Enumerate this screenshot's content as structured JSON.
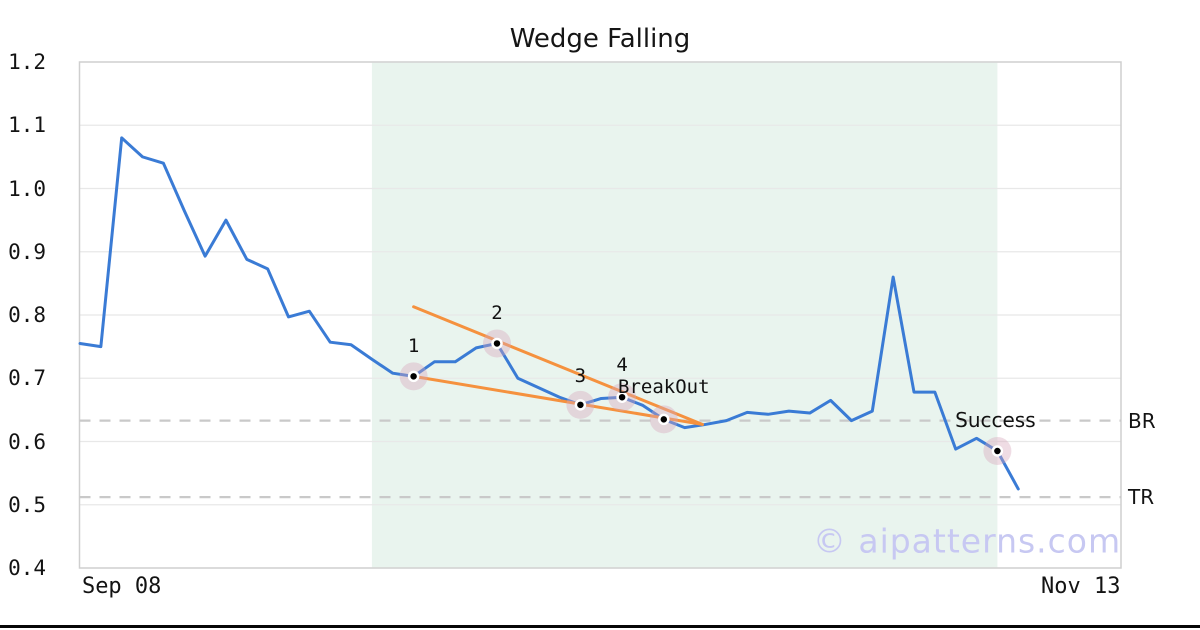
{
  "title": "Wedge Falling",
  "watermark": "© aipatterns.com",
  "axes": {
    "y_tick_labels": [
      "1.2",
      "1.1",
      "1.0",
      "0.9",
      "0.8",
      "0.7",
      "0.6",
      "0.5",
      "0.4"
    ],
    "x_tick_labels": [
      "Sep 08",
      "Nov 13"
    ]
  },
  "level_labels": {
    "br": "BR",
    "tr": "TR"
  },
  "colors": {
    "price_line": "#3a7bd5",
    "trendline": "#f5913e",
    "pattern_window_fill": "#e9f4ee",
    "gridline": "#e8e8e8",
    "plot_border": "#cfcfcf",
    "level_dash": "#c9c9c9",
    "marker_dot": "#000000",
    "marker_dot_edge": "#ffffff",
    "marker_halo": "rgba(214,168,188,0.40)",
    "watermark": "#c7c8f2",
    "text": "#131313"
  },
  "chart_data": {
    "type": "line",
    "title": "Wedge Falling",
    "pattern_name": "Falling Wedge",
    "ylim": [
      0.4,
      1.2
    ],
    "y_ticks": [
      1.2,
      1.1,
      1.0,
      0.9,
      0.8,
      0.7,
      0.6,
      0.5,
      0.4
    ],
    "grid": true,
    "x_tick_labels": [
      "Sep 08",
      "Nov 13"
    ],
    "x_tick_indices": [
      2,
      48
    ],
    "series": [
      {
        "name": "price",
        "color": "#3a7bd5",
        "values": [
          0.755,
          0.75,
          1.08,
          1.05,
          1.04,
          0.965,
          0.893,
          0.95,
          0.888,
          0.873,
          0.797,
          0.806,
          0.757,
          0.753,
          0.73,
          0.708,
          0.703,
          0.726,
          0.726,
          0.748,
          0.755,
          0.7,
          0.685,
          0.67,
          0.658,
          0.668,
          0.67,
          0.657,
          0.635,
          0.622,
          0.627,
          0.633,
          0.646,
          0.643,
          0.648,
          0.645,
          0.665,
          0.633,
          0.648,
          0.86,
          0.678,
          0.678,
          0.588,
          0.605,
          0.585,
          0.525
        ]
      }
    ],
    "levels": [
      {
        "id": "br",
        "label": "BR",
        "value": 0.633
      },
      {
        "id": "tr",
        "label": "TR",
        "value": 0.512
      }
    ],
    "trendlines": [
      {
        "id": "upper",
        "from_index": 16,
        "from_value": 0.813,
        "to_index": 29.85,
        "to_value": 0.627
      },
      {
        "id": "lower",
        "from_index": 16,
        "from_value": 0.703,
        "to_index": 29.85,
        "to_value": 0.627
      }
    ],
    "pattern_window": {
      "start_index": 14,
      "end_index": 44
    },
    "annotations": [
      {
        "id": "p1",
        "label": "1",
        "index": 16,
        "value": 0.703,
        "offset": [
          0,
          -30
        ],
        "font": "mono"
      },
      {
        "id": "p2",
        "label": "2",
        "index": 20,
        "value": 0.755,
        "offset": [
          0,
          -30
        ],
        "font": "mono"
      },
      {
        "id": "p3",
        "label": "3",
        "index": 24,
        "value": 0.658,
        "offset": [
          0,
          -29
        ],
        "font": "mono"
      },
      {
        "id": "p4",
        "label": "4",
        "index": 26,
        "value": 0.67,
        "offset": [
          0,
          -32
        ],
        "font": "mono"
      },
      {
        "id": "breakout",
        "label": "BreakOut",
        "index": 28,
        "value": 0.635,
        "offset": [
          0,
          -32
        ],
        "font": "mono"
      },
      {
        "id": "success",
        "label": "Success",
        "index": 44,
        "value": 0.585,
        "offset": [
          -2,
          -31
        ],
        "font": "sans"
      }
    ],
    "marker_style": {
      "dot_radius": 4.5,
      "halo_radius": 14
    }
  }
}
